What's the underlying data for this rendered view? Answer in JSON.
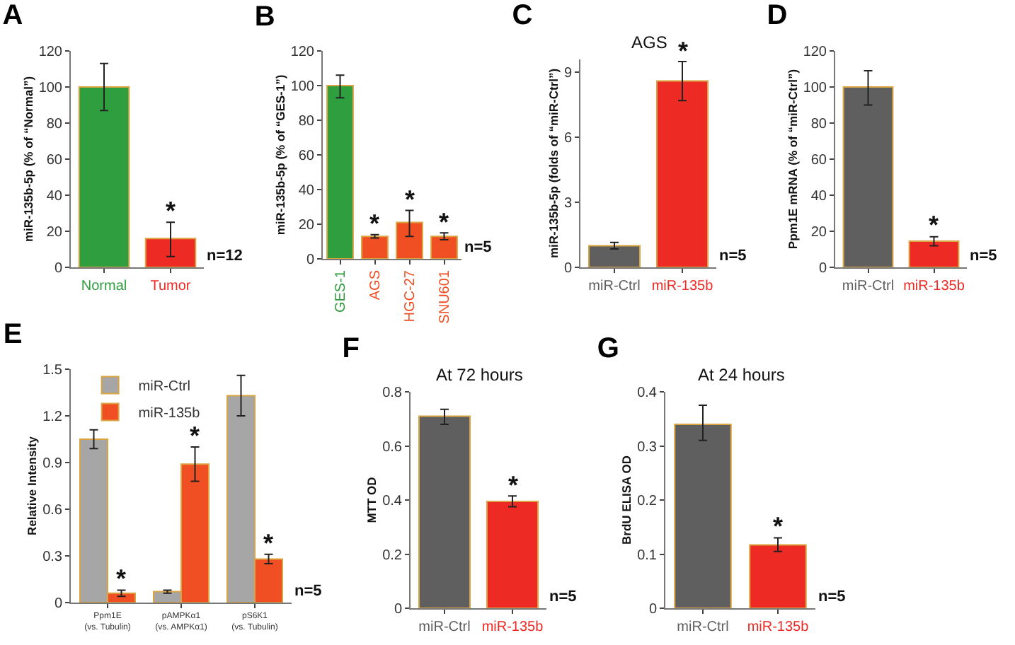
{
  "chart_data": [
    {
      "type": "bar",
      "title": "A",
      "ylabel": "miR-135b-5p (% of “Normal”)",
      "categories": [
        "Normal",
        "Tumor"
      ],
      "values": [
        100,
        16
      ],
      "errors": [
        [
          87,
          113
        ],
        [
          6,
          25
        ]
      ],
      "colors": [
        "#2e9e3e",
        "#ee2a24"
      ],
      "ylim": [
        0,
        120
      ],
      "yticks": [
        0,
        20,
        40,
        60,
        80,
        100,
        120
      ],
      "annotations": [
        {
          "text": "*",
          "x": "Tumor",
          "y": 16
        },
        "n=12"
      ]
    },
    {
      "type": "bar",
      "title": "B",
      "ylabel": "miR-135b-5p (% of “GES-1”)",
      "categories": [
        "GES-1",
        "AGS",
        "HGC-27",
        "SNU601"
      ],
      "values": [
        100,
        13,
        21,
        13
      ],
      "errors": [
        [
          93,
          106
        ],
        [
          12,
          14
        ],
        [
          13,
          28
        ],
        [
          11,
          15
        ]
      ],
      "colors": [
        "#2e9e3e",
        "#f04e23",
        "#f04e23",
        "#f04e23"
      ],
      "ylim": [
        0,
        120
      ],
      "yticks": [
        0,
        20,
        40,
        60,
        80,
        100,
        120
      ],
      "annotations": [
        {
          "text": "*",
          "x": "AGS",
          "y": 13
        },
        {
          "text": "*",
          "x": "HGC-27",
          "y": 21
        },
        {
          "text": "*",
          "x": "SNU601",
          "y": 13
        },
        "n=5"
      ]
    },
    {
      "type": "bar",
      "title": "C",
      "subtitle": "AGS",
      "ylabel": "miR-135b-5p (folds of “miR-Ctrl”)",
      "categories": [
        "miR-Ctrl",
        "miR-135b"
      ],
      "values": [
        1,
        8.6
      ],
      "errors": [
        [
          0.85,
          1.15
        ],
        [
          7.7,
          9.5
        ]
      ],
      "colors": [
        "#5f5f5f",
        "#ee2a24"
      ],
      "ylim": [
        0,
        9.6
      ],
      "yticks": [
        0,
        3,
        6,
        9
      ],
      "annotations": [
        {
          "text": "*",
          "x": "miR-135b",
          "y": 8.6
        },
        "n=5"
      ]
    },
    {
      "type": "bar",
      "title": "D",
      "ylabel": "Ppm1E mRNA (% of “miR-Ctrl”)",
      "categories": [
        "miR-Ctrl",
        "miR-135b"
      ],
      "values": [
        100,
        14.5
      ],
      "errors": [
        [
          90,
          109
        ],
        [
          12,
          17
        ]
      ],
      "colors": [
        "#5f5f5f",
        "#ee2a24"
      ],
      "ylim": [
        0,
        120
      ],
      "yticks": [
        0,
        20,
        40,
        60,
        80,
        100,
        120
      ],
      "annotations": [
        {
          "text": "*",
          "x": "miR-135b",
          "y": 14.5
        },
        "n=5"
      ]
    },
    {
      "type": "bar",
      "title": "E",
      "ylabel": "Relative Intensity",
      "categories": [
        "Ppm1E (vs. Tubulin)",
        "pAMPKα1 (vs. AMPKα1)",
        "pS6K1 (vs. Tubulin)"
      ],
      "series": [
        {
          "name": "miR-Ctrl",
          "color": "#a6a6a6",
          "values": [
            1.05,
            0.07,
            1.33
          ],
          "errors": [
            [
              0.99,
              1.11
            ],
            [
              0.06,
              0.08
            ],
            [
              1.2,
              1.46
            ]
          ]
        },
        {
          "name": "miR-135b",
          "color": "#f04e23",
          "values": [
            0.06,
            0.89,
            0.28
          ],
          "errors": [
            [
              0.04,
              0.08
            ],
            [
              0.78,
              1.0
            ],
            [
              0.25,
              0.31
            ]
          ]
        }
      ],
      "ylim": [
        0,
        1.5
      ],
      "yticks": [
        0,
        0.3,
        0.6,
        0.9,
        1.2,
        1.5
      ],
      "legend": "top left",
      "annotations": [
        {
          "text": "*",
          "x": "Ppm1E (vs. Tubulin)",
          "y": 0.06
        },
        {
          "text": "*",
          "x": "pAMPKα1 (vs. AMPKα1)",
          "y": 0.89
        },
        {
          "text": "*",
          "x": "pS6K1 (vs. Tubulin)",
          "y": 0.28
        },
        "n=5"
      ]
    },
    {
      "type": "bar",
      "title": "F",
      "subtitle": "At 72 hours",
      "ylabel": "MTT OD",
      "categories": [
        "miR-Ctrl",
        "miR-135b"
      ],
      "values": [
        0.71,
        0.395
      ],
      "errors": [
        [
          0.68,
          0.735
        ],
        [
          0.375,
          0.415
        ]
      ],
      "colors": [
        "#5f5f5f",
        "#ee2a24"
      ],
      "ylim": [
        0,
        0.8
      ],
      "yticks": [
        0,
        0.2,
        0.4,
        0.6,
        0.8
      ],
      "annotations": [
        {
          "text": "*",
          "x": "miR-135b",
          "y": 0.395
        },
        "n=5"
      ]
    },
    {
      "type": "bar",
      "title": "G",
      "subtitle": "At 24 hours",
      "ylabel": "BrdU ELISA OD",
      "categories": [
        "miR-Ctrl",
        "miR-135b"
      ],
      "values": [
        0.34,
        0.117
      ],
      "errors": [
        [
          0.31,
          0.375
        ],
        [
          0.105,
          0.13
        ]
      ],
      "colors": [
        "#5f5f5f",
        "#ee2a24"
      ],
      "ylim": [
        0,
        0.4
      ],
      "yticks": [
        0,
        0.1,
        0.2,
        0.3,
        0.4
      ],
      "annotations": [
        {
          "text": "*",
          "x": "miR-135b",
          "y": 0.117
        },
        "n=5"
      ]
    }
  ]
}
